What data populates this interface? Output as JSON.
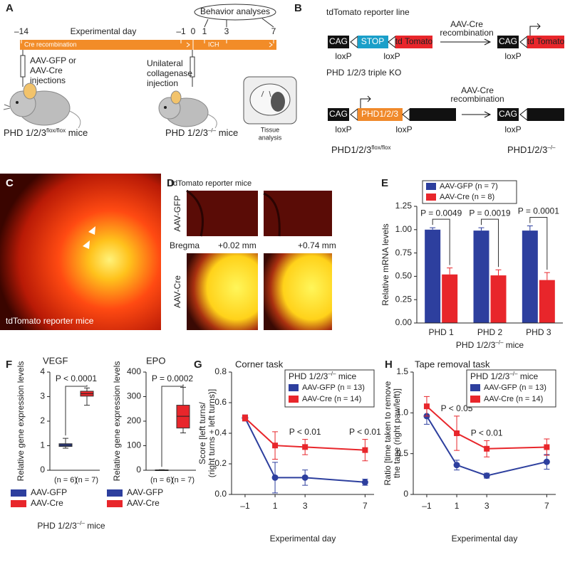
{
  "panels": {
    "A": {
      "letter": "A",
      "title": "Behavior analyses",
      "axis_label": "Experimental day",
      "days": [
        "–14",
        "–1",
        "0",
        "1",
        "3",
        "7"
      ],
      "bar_labels": [
        "Cre recombination",
        "ICH"
      ],
      "injection1": [
        "AAV-GFP or",
        "AAV-Cre",
        "injections"
      ],
      "injection2": [
        "Unilateral",
        "collagenase",
        "injection"
      ],
      "tissue": [
        "Tissue",
        "analysis"
      ],
      "mice1": {
        "base": "PHD 1/2/3",
        "sup": "flox/flox",
        "tail": " mice"
      },
      "mice2": {
        "base": "PHD 1/2/3",
        "sup": "–/–",
        "tail": " mice"
      }
    },
    "B": {
      "letter": "B",
      "line1": {
        "title": "tdTomato reporter line",
        "before": [
          "CAG",
          "STOP",
          "td Tomato"
        ],
        "after": [
          "CAG",
          "td Tomato"
        ],
        "loxp_before": [
          "loxP",
          "loxP"
        ],
        "loxp_after": [
          "loxP"
        ],
        "arrow": [
          "AAV-Cre",
          "recombination"
        ]
      },
      "line2": {
        "title": "PHD 1/2/3 triple KO",
        "before": [
          "CAG",
          "PHD1/2/3"
        ],
        "after": [
          "CAG"
        ],
        "loxp_before": [
          "loxP",
          "loxP"
        ],
        "loxp_after": [
          "loxP"
        ],
        "arrow": [
          "AAV-Cre",
          "recombination"
        ],
        "genotype_before": {
          "base": "PHD1/2/3",
          "sup": "flox/flox"
        },
        "genotype_after": {
          "base": "PHD1/2/3",
          "sup": "–/–"
        }
      }
    },
    "C": {
      "letter": "C",
      "caption": "tdTomato reporter mice"
    },
    "D": {
      "letter": "D",
      "title": "tdTomato reporter mice",
      "rows": [
        "AAV-GFP",
        "AAV-Cre"
      ],
      "bregma": "Bregma",
      "positions": [
        "+0.02 mm",
        "+0.74 mm"
      ]
    },
    "F": {
      "letter": "F",
      "legend": [
        {
          "name": "AAV-GFP",
          "color": "#2d3f9e"
        },
        {
          "name": "AAV-Cre",
          "color": "#e8262b"
        }
      ],
      "xlabel": {
        "base": "PHD 1/2/3",
        "sup": "–/–",
        "tail": " mice"
      }
    }
  },
  "chart_data": [
    {
      "type": "bar",
      "panel": "E",
      "categories": [
        "PHD 1",
        "PHD 2",
        "PHD 3"
      ],
      "series": [
        {
          "name": "AAV-GFP (n = 7)",
          "color": "#2d3f9e",
          "values": [
            1.0,
            0.99,
            0.99
          ],
          "errors": [
            0.02,
            0.03,
            0.05
          ]
        },
        {
          "name": "AAV-Cre (n = 8)",
          "color": "#e8262b",
          "values": [
            0.52,
            0.51,
            0.46
          ],
          "errors": [
            0.07,
            0.06,
            0.08
          ]
        }
      ],
      "annotations": [
        "P = 0.0049",
        "P = 0.0019",
        "P = 0.0001"
      ],
      "ylabel": [
        "Relative  mRNA levels"
      ],
      "xlabel": {
        "base": "PHD 1/2/3",
        "sup": "–/–",
        "tail": " mice"
      },
      "ylim": [
        0,
        1.25
      ],
      "yticks": [
        {
          "value": 0,
          "label": "0.00"
        },
        {
          "value": 0.25,
          "label": "0.25"
        },
        {
          "value": 0.5,
          "label": "0.50"
        },
        {
          "value": 0.75,
          "label": "0.75"
        },
        {
          "value": 1,
          "label": "1.00"
        },
        {
          "value": 1.25,
          "label": "1.25"
        }
      ]
    },
    {
      "type": "box",
      "title": "VEGF",
      "categories": [
        "(n = 6)",
        "(n = 7)"
      ],
      "boxes": [
        {
          "whislo": 0.9,
          "q1": 0.97,
          "med": 1.02,
          "q3": 1.08,
          "whishi": 1.3
        },
        {
          "whislo": 2.65,
          "q1": 3.02,
          "med": 3.12,
          "q3": 3.22,
          "whishi": 3.35
        }
      ],
      "annotation": "P < 0.0001",
      "ylabel": [
        "Relative gene expression levels"
      ],
      "ylim": [
        0,
        4
      ],
      "yticks": [
        0,
        1,
        2,
        3,
        4
      ]
    },
    {
      "type": "box",
      "title": "EPO",
      "categories": [
        "(n = 6)",
        "(n = 7)"
      ],
      "boxes": [
        {
          "whislo": 0,
          "q1": 0.5,
          "med": 1,
          "q3": 1.5,
          "whishi": 2
        },
        {
          "whislo": 152,
          "q1": 172,
          "med": 220,
          "q3": 265,
          "whishi": 338
        }
      ],
      "annotation": "P = 0.0002",
      "ylabel": [
        "Relative gene expression levels"
      ],
      "ylim": [
        0,
        400
      ],
      "yticks": [
        0,
        100,
        200,
        300,
        400
      ]
    },
    {
      "type": "line",
      "panel": "G",
      "title": "Corner task",
      "x": [
        -1,
        1,
        3,
        7
      ],
      "series": [
        {
          "name": "AAV-GFP (n = 13)",
          "color": "#2d3f9e",
          "marker": "circle",
          "values": [
            0.5,
            0.11,
            0.11,
            0.08
          ],
          "errors": [
            0.02,
            0.1,
            0.05,
            0.02
          ]
        },
        {
          "name": "AAV-Cre (n = 14)",
          "color": "#e8262b",
          "marker": "square",
          "values": [
            0.5,
            0.32,
            0.31,
            0.29
          ],
          "errors": [
            0.02,
            0.09,
            0.05,
            0.07
          ]
        }
      ],
      "annotations": [
        {
          "x": 3,
          "text": "P < 0.01"
        },
        {
          "x": 7,
          "text": "P < 0.01"
        }
      ],
      "legend_title": {
        "base": "PHD 1/2/3",
        "sup": "–/–",
        "tail": " mice"
      },
      "xlabel": "Experimental day",
      "ylabel": [
        "Score [left turns/",
        "(right turns + left turns)]"
      ],
      "xlim": [
        -1.9,
        7.6
      ],
      "xticks": [
        {
          "value": -1,
          "label": "–1"
        },
        1,
        3,
        7
      ],
      "ylim": [
        0,
        0.8
      ],
      "yticks": [
        {
          "value": 0,
          "label": "0.0"
        },
        {
          "value": 0.2,
          "label": "0.2"
        },
        {
          "value": 0.4,
          "label": "0.4"
        },
        {
          "value": 0.6,
          "label": "0.6"
        },
        {
          "value": 0.8,
          "label": "0.8"
        }
      ]
    },
    {
      "type": "line",
      "panel": "H",
      "title": "Tape removal task",
      "x": [
        -1,
        1,
        3,
        7
      ],
      "series": [
        {
          "name": "AAV-GFP (n = 13)",
          "color": "#2d3f9e",
          "marker": "circle",
          "values": [
            0.96,
            0.36,
            0.23,
            0.4
          ],
          "errors": [
            0.1,
            0.06,
            0.03,
            0.09
          ]
        },
        {
          "name": "AAV-Cre (n = 14)",
          "color": "#e8262b",
          "marker": "square",
          "values": [
            1.08,
            0.75,
            0.56,
            0.58
          ],
          "errors": [
            0.12,
            0.21,
            0.1,
            0.1
          ]
        }
      ],
      "annotations": [
        {
          "x": 1,
          "text": "P < 0.05"
        },
        {
          "x": 3,
          "text": "P < 0.01"
        }
      ],
      "legend_title": {
        "base": "PHD 1/2/3",
        "sup": "–/–",
        "tail": " mice"
      },
      "xlabel": "Experimental day",
      "ylabel": [
        "Ratio [time taken to remove",
        "the tape (right paw/left)]"
      ],
      "xlim": [
        -1.9,
        7.6
      ],
      "xticks": [
        {
          "value": -1,
          "label": "–1"
        },
        1,
        3,
        7
      ],
      "ylim": [
        0,
        1.5
      ],
      "yticks": [
        0,
        {
          "value": 0.5,
          "label": "0.5"
        },
        {
          "value": 1,
          "label": "1.0"
        },
        {
          "value": 1.5,
          "label": "1.5"
        }
      ]
    }
  ]
}
